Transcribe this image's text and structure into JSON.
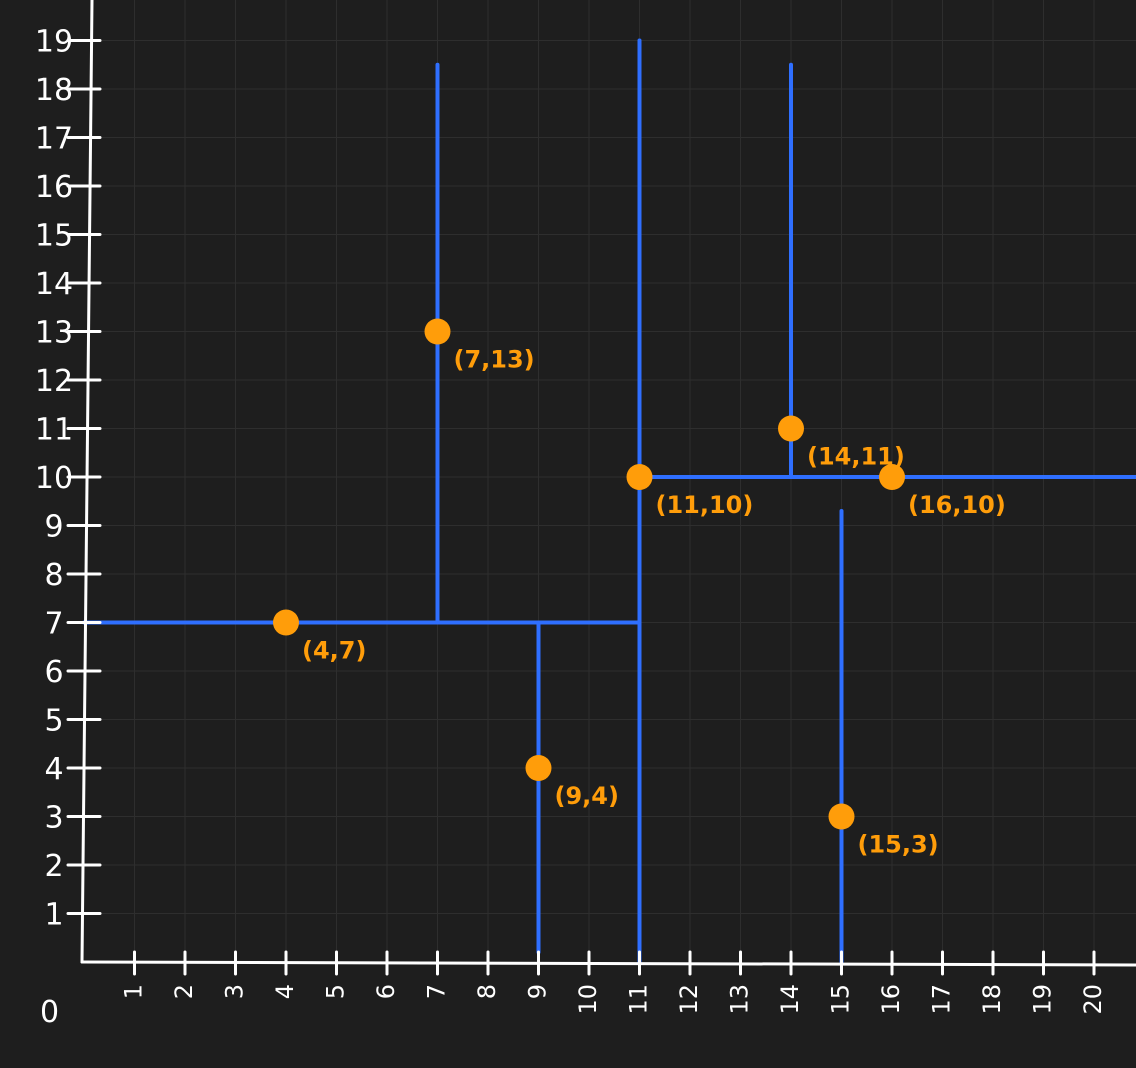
{
  "diagram": {
    "type": "scatter-partition",
    "origin_label": "0",
    "x_ticks": [
      "1",
      "2",
      "3",
      "4",
      "5",
      "6",
      "7",
      "8",
      "9",
      "10",
      "11",
      "12",
      "13",
      "14",
      "15",
      "16",
      "17",
      "18",
      "19",
      "20"
    ],
    "y_ticks": [
      "1",
      "2",
      "3",
      "4",
      "5",
      "6",
      "7",
      "8",
      "9",
      "10",
      "11",
      "12",
      "13",
      "14",
      "15",
      "16",
      "17",
      "18",
      "19"
    ],
    "points": [
      {
        "x": 4,
        "y": 7,
        "label": "(4,7)"
      },
      {
        "x": 7,
        "y": 13,
        "label": "(7,13)"
      },
      {
        "x": 9,
        "y": 4,
        "label": "(9,4)"
      },
      {
        "x": 11,
        "y": 10,
        "label": "(11,10)"
      },
      {
        "x": 14,
        "y": 11,
        "label": "(14,11)"
      },
      {
        "x": 15,
        "y": 3,
        "label": "(15,3)"
      },
      {
        "x": 16,
        "y": 10,
        "label": "(16,10)"
      }
    ],
    "split_lines": [
      {
        "orientation": "vertical",
        "at": 11,
        "from": 0,
        "to": 19
      },
      {
        "orientation": "horizontal",
        "at": 7,
        "from": 0,
        "to": 11
      },
      {
        "orientation": "vertical",
        "at": 7,
        "from": 7,
        "to": 18.5
      },
      {
        "orientation": "vertical",
        "at": 9,
        "from": 0.2,
        "to": 7
      },
      {
        "orientation": "horizontal",
        "at": 10,
        "from": 11,
        "to": 21
      },
      {
        "orientation": "vertical",
        "at": 14,
        "from": 10,
        "to": 18.5
      },
      {
        "orientation": "vertical",
        "at": 15,
        "from": 0,
        "to": 9.3
      }
    ],
    "colors": {
      "background": "#1e1e1e",
      "axis": "#ffffff",
      "line": "#2f6fff",
      "point": "#ff9d0a"
    }
  }
}
